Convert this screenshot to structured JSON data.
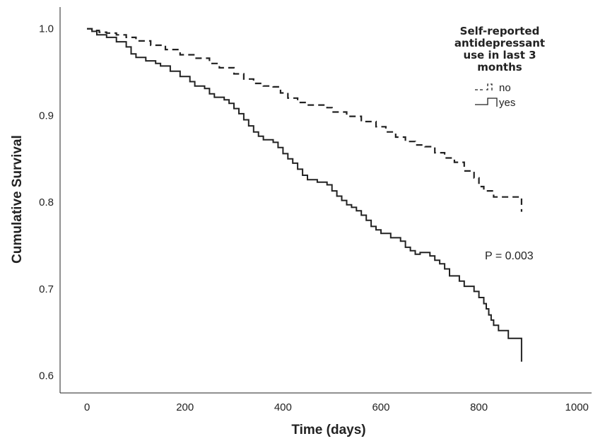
{
  "chart_data": {
    "type": "line",
    "step": true,
    "xlabel": "Time (days)",
    "ylabel": "Cumulative Survival",
    "xlim": [
      -55,
      1030
    ],
    "ylim": [
      0.58,
      1.025
    ],
    "xticks": [
      0,
      200,
      400,
      600,
      800,
      1000
    ],
    "yticks": [
      0.6,
      0.7,
      0.8,
      0.9,
      1.0
    ],
    "xtick_labels": [
      "0",
      "200",
      "400",
      "600",
      "800",
      "1000"
    ],
    "ytick_labels": [
      "0.6",
      "0.7",
      "0.8",
      "0.9",
      "1.0"
    ],
    "legend": {
      "title_lines": [
        "Self-reported",
        "antidepressant",
        "use in last 3",
        "months"
      ],
      "placement": "top-right"
    },
    "annotation": "P = 0.003",
    "grid": false,
    "series": [
      {
        "name": "no",
        "dash": "dashed",
        "color": "#222222",
        "points": [
          [
            0,
            1.0
          ],
          [
            10,
            0.998
          ],
          [
            25,
            0.996
          ],
          [
            40,
            0.995
          ],
          [
            60,
            0.993
          ],
          [
            80,
            0.99
          ],
          [
            100,
            0.986
          ],
          [
            130,
            0.981
          ],
          [
            160,
            0.976
          ],
          [
            190,
            0.97
          ],
          [
            220,
            0.966
          ],
          [
            250,
            0.96
          ],
          [
            270,
            0.955
          ],
          [
            300,
            0.948
          ],
          [
            320,
            0.942
          ],
          [
            340,
            0.937
          ],
          [
            360,
            0.934
          ],
          [
            380,
            0.933
          ],
          [
            395,
            0.926
          ],
          [
            410,
            0.92
          ],
          [
            430,
            0.915
          ],
          [
            450,
            0.912
          ],
          [
            490,
            0.909
          ],
          [
            500,
            0.904
          ],
          [
            530,
            0.899
          ],
          [
            560,
            0.893
          ],
          [
            590,
            0.887
          ],
          [
            610,
            0.881
          ],
          [
            630,
            0.875
          ],
          [
            650,
            0.87
          ],
          [
            670,
            0.866
          ],
          [
            690,
            0.864
          ],
          [
            710,
            0.857
          ],
          [
            730,
            0.851
          ],
          [
            750,
            0.846
          ],
          [
            770,
            0.836
          ],
          [
            790,
            0.828
          ],
          [
            800,
            0.818
          ],
          [
            810,
            0.813
          ],
          [
            830,
            0.806
          ],
          [
            887,
            0.806
          ],
          [
            887,
            0.789
          ]
        ]
      },
      {
        "name": "yes",
        "dash": "solid",
        "color": "#222222",
        "points": [
          [
            0,
            1.0
          ],
          [
            10,
            0.997
          ],
          [
            20,
            0.993
          ],
          [
            40,
            0.99
          ],
          [
            60,
            0.985
          ],
          [
            80,
            0.979
          ],
          [
            90,
            0.971
          ],
          [
            100,
            0.967
          ],
          [
            120,
            0.963
          ],
          [
            140,
            0.96
          ],
          [
            150,
            0.957
          ],
          [
            170,
            0.951
          ],
          [
            190,
            0.945
          ],
          [
            210,
            0.939
          ],
          [
            220,
            0.934
          ],
          [
            240,
            0.931
          ],
          [
            250,
            0.925
          ],
          [
            260,
            0.921
          ],
          [
            280,
            0.918
          ],
          [
            290,
            0.914
          ],
          [
            300,
            0.908
          ],
          [
            310,
            0.902
          ],
          [
            320,
            0.895
          ],
          [
            330,
            0.888
          ],
          [
            340,
            0.881
          ],
          [
            350,
            0.876
          ],
          [
            360,
            0.872
          ],
          [
            380,
            0.869
          ],
          [
            390,
            0.863
          ],
          [
            400,
            0.856
          ],
          [
            410,
            0.85
          ],
          [
            420,
            0.845
          ],
          [
            430,
            0.838
          ],
          [
            440,
            0.831
          ],
          [
            450,
            0.826
          ],
          [
            470,
            0.823
          ],
          [
            490,
            0.82
          ],
          [
            500,
            0.813
          ],
          [
            510,
            0.807
          ],
          [
            520,
            0.802
          ],
          [
            530,
            0.797
          ],
          [
            540,
            0.794
          ],
          [
            550,
            0.79
          ],
          [
            560,
            0.785
          ],
          [
            570,
            0.779
          ],
          [
            580,
            0.772
          ],
          [
            590,
            0.768
          ],
          [
            600,
            0.764
          ],
          [
            620,
            0.759
          ],
          [
            640,
            0.755
          ],
          [
            650,
            0.748
          ],
          [
            660,
            0.744
          ],
          [
            670,
            0.74
          ],
          [
            680,
            0.742
          ],
          [
            700,
            0.738
          ],
          [
            710,
            0.733
          ],
          [
            720,
            0.729
          ],
          [
            730,
            0.723
          ],
          [
            740,
            0.715
          ],
          [
            760,
            0.709
          ],
          [
            770,
            0.703
          ],
          [
            790,
            0.697
          ],
          [
            800,
            0.69
          ],
          [
            810,
            0.683
          ],
          [
            815,
            0.677
          ],
          [
            820,
            0.67
          ],
          [
            825,
            0.664
          ],
          [
            830,
            0.658
          ],
          [
            840,
            0.652
          ],
          [
            860,
            0.643
          ],
          [
            887,
            0.643
          ],
          [
            887,
            0.616
          ]
        ]
      }
    ]
  }
}
